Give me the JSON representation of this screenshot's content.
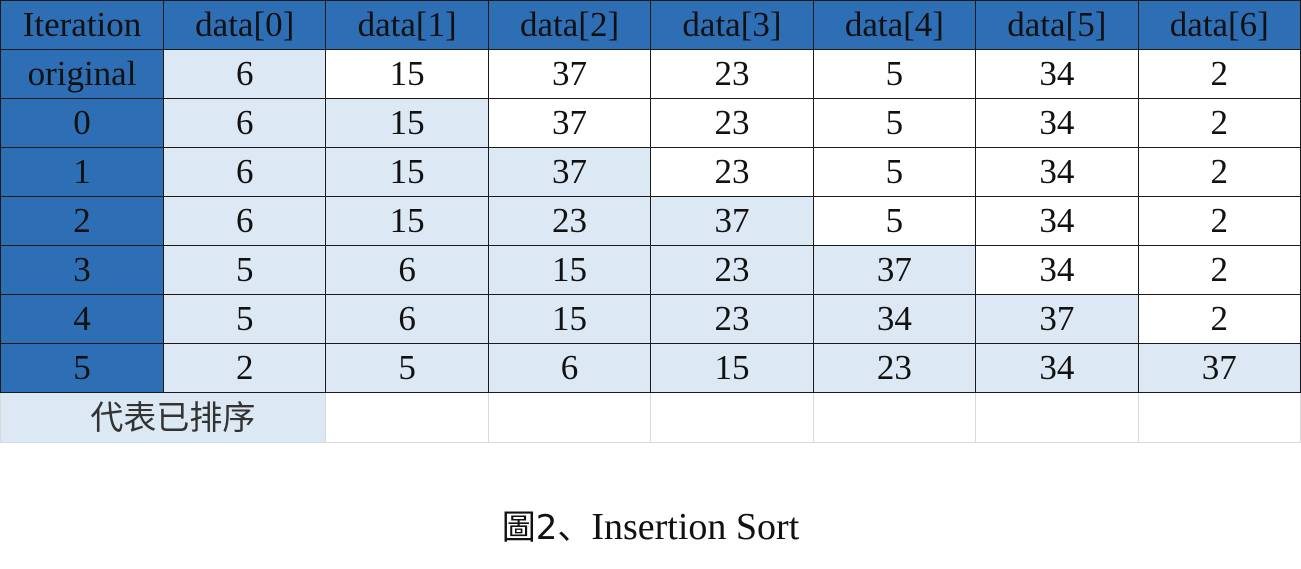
{
  "table": {
    "header": [
      "Iteration",
      "data[0]",
      "data[1]",
      "data[2]",
      "data[3]",
      "data[4]",
      "data[5]",
      "data[6]"
    ],
    "rows": [
      {
        "label": "original",
        "values": [
          "6",
          "15",
          "37",
          "23",
          "5",
          "34",
          "2"
        ],
        "sorted_count": 1
      },
      {
        "label": "0",
        "values": [
          "6",
          "15",
          "37",
          "23",
          "5",
          "34",
          "2"
        ],
        "sorted_count": 2
      },
      {
        "label": "1",
        "values": [
          "6",
          "15",
          "37",
          "23",
          "5",
          "34",
          "2"
        ],
        "sorted_count": 3
      },
      {
        "label": "2",
        "values": [
          "6",
          "15",
          "23",
          "37",
          "5",
          "34",
          "2"
        ],
        "sorted_count": 4
      },
      {
        "label": "3",
        "values": [
          "5",
          "6",
          "15",
          "23",
          "37",
          "34",
          "2"
        ],
        "sorted_count": 5
      },
      {
        "label": "4",
        "values": [
          "5",
          "6",
          "15",
          "23",
          "34",
          "37",
          "2"
        ],
        "sorted_count": 6
      },
      {
        "label": "5",
        "values": [
          "2",
          "5",
          "6",
          "15",
          "23",
          "34",
          "37"
        ],
        "sorted_count": 7
      }
    ]
  },
  "legend": {
    "label": "代表已排序"
  },
  "caption": {
    "prefix": "圖2、",
    "text": "Insertion Sort"
  },
  "colors": {
    "header_fill": "#2e6eb4",
    "sorted_fill": "#dce9f5",
    "unsorted_fill": "#ffffff",
    "grid": "#1a1a1a"
  }
}
